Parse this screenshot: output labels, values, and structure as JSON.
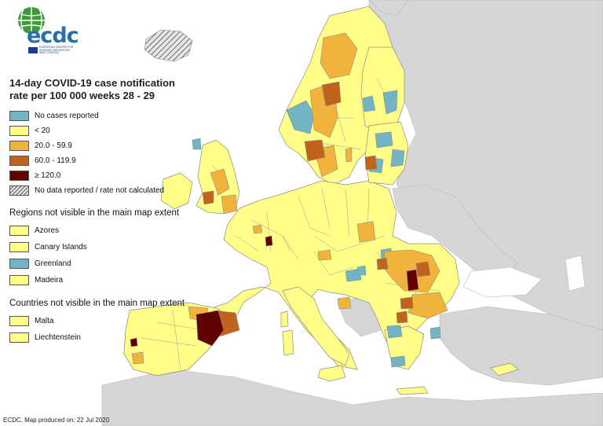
{
  "logo": {
    "brand": "ecdc",
    "subtitle": "EUROPEAN CENTRE FOR DISEASE PREVENTION AND CONTROL",
    "icon": "globe-icon"
  },
  "legend": {
    "title": "14-day COVID-19 case notification rate per 100 000 weeks 28 - 29",
    "classes": [
      {
        "label": "No cases reported",
        "color": "#71b4c3"
      },
      {
        "label": "< 20",
        "color": "#ffff88"
      },
      {
        "label": "20.0 - 59.9",
        "color": "#f2b33d"
      },
      {
        "label": "60.0 - 119.9",
        "color": "#c1631c"
      },
      {
        "label": "≥ 120.0",
        "color": "#620000"
      },
      {
        "label": "No data reported / rate not calculated",
        "color": "hatched-grey"
      }
    ],
    "regions_title": "Regions not visible in the main map extent",
    "regions": [
      {
        "label": "Azores",
        "color": "#ffff88"
      },
      {
        "label": "Canary Islands",
        "color": "#ffff88"
      },
      {
        "label": "Greenland",
        "color": "#71b4c3"
      },
      {
        "label": "Madeira",
        "color": "#ffff88"
      }
    ],
    "countries_title": "Countries not visible in the main map extent",
    "countries": [
      {
        "label": "Malta",
        "color": "#ffff88"
      },
      {
        "label": "Liechtenstein",
        "color": "#ffff88"
      }
    ]
  },
  "credit": "ECDC. Map produced on: 22 Jul 2020",
  "colors": {
    "sea": "#ffffff",
    "non_eu_land": "#d6d6d6",
    "border": "#8a8a8a"
  }
}
